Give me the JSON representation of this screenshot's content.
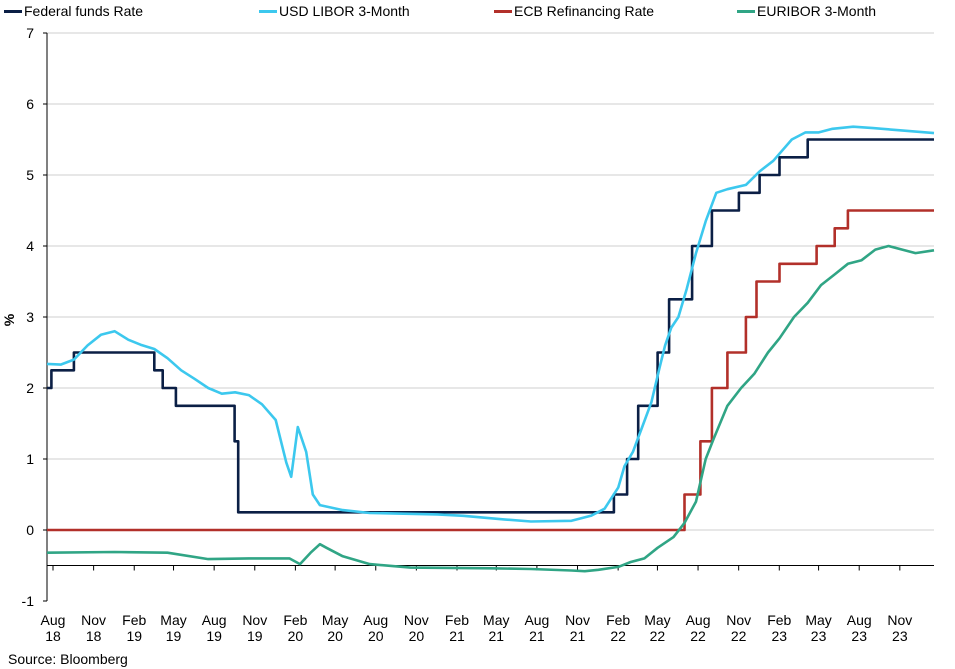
{
  "source": "Source: Bloomberg",
  "chart_data": {
    "type": "line",
    "ylabel": "%",
    "xlabel": "",
    "title": "",
    "ylim": [
      -1,
      7
    ],
    "yticks": [
      "-1",
      "0",
      "1",
      "2",
      "3",
      "4",
      "5",
      "6",
      "7"
    ],
    "grid": "horizontal",
    "legend_position": "top",
    "xlim": [
      "2018-08-01",
      "2024-01-31"
    ],
    "xticks": [
      {
        "date": "2018-08-01",
        "month": "Aug",
        "year": "18"
      },
      {
        "date": "2018-11-01",
        "month": "Nov",
        "year": "18"
      },
      {
        "date": "2019-02-01",
        "month": "Feb",
        "year": "19"
      },
      {
        "date": "2019-05-01",
        "month": "May",
        "year": "19"
      },
      {
        "date": "2019-08-01",
        "month": "Aug",
        "year": "19"
      },
      {
        "date": "2019-11-01",
        "month": "Nov",
        "year": "19"
      },
      {
        "date": "2020-02-01",
        "month": "Feb",
        "year": "20"
      },
      {
        "date": "2020-05-01",
        "month": "May",
        "year": "20"
      },
      {
        "date": "2020-08-01",
        "month": "Aug",
        "year": "20"
      },
      {
        "date": "2020-11-01",
        "month": "Nov",
        "year": "20"
      },
      {
        "date": "2021-02-01",
        "month": "Feb",
        "year": "21"
      },
      {
        "date": "2021-05-01",
        "month": "May",
        "year": "21"
      },
      {
        "date": "2021-08-01",
        "month": "Aug",
        "year": "21"
      },
      {
        "date": "2021-11-01",
        "month": "Nov",
        "year": "21"
      },
      {
        "date": "2022-02-01",
        "month": "Feb",
        "year": "22"
      },
      {
        "date": "2022-05-01",
        "month": "May",
        "year": "22"
      },
      {
        "date": "2022-08-01",
        "month": "Aug",
        "year": "22"
      },
      {
        "date": "2022-11-01",
        "month": "Nov",
        "year": "22"
      },
      {
        "date": "2023-02-01",
        "month": "Feb",
        "year": "23"
      },
      {
        "date": "2023-05-01",
        "month": "May",
        "year": "23"
      },
      {
        "date": "2023-08-01",
        "month": "Aug",
        "year": "23"
      },
      {
        "date": "2023-11-01",
        "month": "Nov",
        "year": "23"
      }
    ],
    "series": [
      {
        "name": "Federal funds Rate",
        "color": "#0b1f45",
        "step": true,
        "points": [
          [
            "2018-08-01",
            2.0
          ],
          [
            "2018-08-11",
            2.25
          ],
          [
            "2018-10-01",
            2.5
          ],
          [
            "2019-04-01",
            2.25
          ],
          [
            "2019-04-20",
            2.0
          ],
          [
            "2019-05-20",
            1.75
          ],
          [
            "2019-09-30",
            1.25
          ],
          [
            "2019-10-08",
            0.25
          ],
          [
            "2021-07-10",
            0.25
          ],
          [
            "2022-02-05",
            0.5
          ],
          [
            "2022-03-07",
            1.0
          ],
          [
            "2022-04-01",
            1.75
          ],
          [
            "2022-05-15",
            2.5
          ],
          [
            "2022-06-10",
            3.25
          ],
          [
            "2022-08-01",
            4.0
          ],
          [
            "2022-09-15",
            4.5
          ],
          [
            "2022-11-15",
            4.75
          ],
          [
            "2023-01-01",
            5.0
          ],
          [
            "2023-02-15",
            5.25
          ],
          [
            "2023-04-20",
            5.5
          ],
          [
            "2024-01-31",
            5.5
          ]
        ]
      },
      {
        "name": "USD LIBOR 3-Month",
        "color": "#3cc8ee",
        "step": false,
        "points": [
          [
            "2018-08-01",
            2.34
          ],
          [
            "2018-09-01",
            2.33
          ],
          [
            "2018-10-01",
            2.4
          ],
          [
            "2018-11-01",
            2.6
          ],
          [
            "2018-12-01",
            2.75
          ],
          [
            "2019-01-01",
            2.8
          ],
          [
            "2019-02-01",
            2.68
          ],
          [
            "2019-03-01",
            2.61
          ],
          [
            "2019-04-01",
            2.55
          ],
          [
            "2019-05-01",
            2.42
          ],
          [
            "2019-06-01",
            2.25
          ],
          [
            "2019-07-01",
            2.13
          ],
          [
            "2019-08-01",
            2.0
          ],
          [
            "2019-09-01",
            1.92
          ],
          [
            "2019-10-01",
            1.94
          ],
          [
            "2019-11-01",
            1.9
          ],
          [
            "2019-12-01",
            1.77
          ],
          [
            "2020-01-01",
            1.55
          ],
          [
            "2020-01-25",
            0.95
          ],
          [
            "2020-02-05",
            0.75
          ],
          [
            "2020-02-20",
            1.45
          ],
          [
            "2020-03-10",
            1.1
          ],
          [
            "2020-03-25",
            0.5
          ],
          [
            "2020-04-10",
            0.35
          ],
          [
            "2020-06-01",
            0.28
          ],
          [
            "2020-08-01",
            0.24
          ],
          [
            "2021-01-01",
            0.22
          ],
          [
            "2021-03-01",
            0.2
          ],
          [
            "2021-06-01",
            0.15
          ],
          [
            "2021-08-01",
            0.12
          ],
          [
            "2021-11-01",
            0.13
          ],
          [
            "2021-12-15",
            0.2
          ],
          [
            "2022-01-15",
            0.3
          ],
          [
            "2022-02-15",
            0.6
          ],
          [
            "2022-03-01",
            0.9
          ],
          [
            "2022-03-20",
            1.1
          ],
          [
            "2022-04-10",
            1.45
          ],
          [
            "2022-05-01",
            1.8
          ],
          [
            "2022-05-20",
            2.3
          ],
          [
            "2022-06-01",
            2.6
          ],
          [
            "2022-06-15",
            2.85
          ],
          [
            "2022-07-01",
            3.0
          ],
          [
            "2022-07-20",
            3.4
          ],
          [
            "2022-08-10",
            3.9
          ],
          [
            "2022-09-01",
            4.35
          ],
          [
            "2022-09-25",
            4.75
          ],
          [
            "2022-10-20",
            4.8
          ],
          [
            "2022-12-01",
            4.86
          ],
          [
            "2023-01-01",
            5.05
          ],
          [
            "2023-02-01",
            5.2
          ],
          [
            "2023-03-15",
            5.5
          ],
          [
            "2023-04-15",
            5.6
          ],
          [
            "2023-05-15",
            5.6
          ],
          [
            "2023-06-15",
            5.65
          ],
          [
            "2023-08-01",
            5.68
          ],
          [
            "2023-09-15",
            5.66
          ],
          [
            "2023-11-15",
            5.63
          ],
          [
            "2024-01-31",
            5.59
          ]
        ]
      },
      {
        "name": "ECB Refinancing Rate",
        "color": "#b2302a",
        "step": true,
        "points": [
          [
            "2018-08-01",
            0.0
          ],
          [
            "2022-07-15",
            0.5
          ],
          [
            "2022-08-20",
            1.25
          ],
          [
            "2022-09-15",
            2.0
          ],
          [
            "2022-10-20",
            2.5
          ],
          [
            "2022-12-01",
            3.0
          ],
          [
            "2022-12-25",
            3.5
          ],
          [
            "2023-02-15",
            3.75
          ],
          [
            "2023-05-10",
            4.0
          ],
          [
            "2023-06-20",
            4.25
          ],
          [
            "2023-07-20",
            4.5
          ],
          [
            "2024-01-31",
            4.5
          ]
        ]
      },
      {
        "name": "EURIBOR 3-Month",
        "color": "#30a585",
        "step": false,
        "points": [
          [
            "2018-08-01",
            -0.32
          ],
          [
            "2019-01-01",
            -0.31
          ],
          [
            "2019-05-01",
            -0.32
          ],
          [
            "2019-08-01",
            -0.41
          ],
          [
            "2019-11-01",
            -0.4
          ],
          [
            "2020-02-01",
            -0.4
          ],
          [
            "2020-02-25",
            -0.48
          ],
          [
            "2020-03-20",
            -0.32
          ],
          [
            "2020-04-10",
            -0.2
          ],
          [
            "2020-04-25",
            -0.25
          ],
          [
            "2020-06-01",
            -0.37
          ],
          [
            "2020-08-01",
            -0.48
          ],
          [
            "2020-11-01",
            -0.53
          ],
          [
            "2021-05-01",
            -0.54
          ],
          [
            "2021-08-01",
            -0.55
          ],
          [
            "2021-11-01",
            -0.57
          ],
          [
            "2021-12-01",
            -0.58
          ],
          [
            "2022-01-01",
            -0.56
          ],
          [
            "2022-02-15",
            -0.52
          ],
          [
            "2022-03-15",
            -0.45
          ],
          [
            "2022-04-15",
            -0.4
          ],
          [
            "2022-05-15",
            -0.25
          ],
          [
            "2022-06-20",
            -0.1
          ],
          [
            "2022-07-15",
            0.1
          ],
          [
            "2022-08-10",
            0.4
          ],
          [
            "2022-09-01",
            1.0
          ],
          [
            "2022-09-20",
            1.3
          ],
          [
            "2022-10-20",
            1.75
          ],
          [
            "2022-11-20",
            2.0
          ],
          [
            "2022-12-20",
            2.2
          ],
          [
            "2023-01-20",
            2.5
          ],
          [
            "2023-02-15",
            2.7
          ],
          [
            "2023-03-20",
            3.0
          ],
          [
            "2023-04-20",
            3.2
          ],
          [
            "2023-05-20",
            3.45
          ],
          [
            "2023-06-20",
            3.6
          ],
          [
            "2023-07-20",
            3.75
          ],
          [
            "2023-08-20",
            3.8
          ],
          [
            "2023-09-20",
            3.95
          ],
          [
            "2023-10-20",
            4.0
          ],
          [
            "2023-11-20",
            3.95
          ],
          [
            "2023-12-20",
            3.9
          ],
          [
            "2024-01-31",
            3.94
          ]
        ]
      }
    ]
  }
}
